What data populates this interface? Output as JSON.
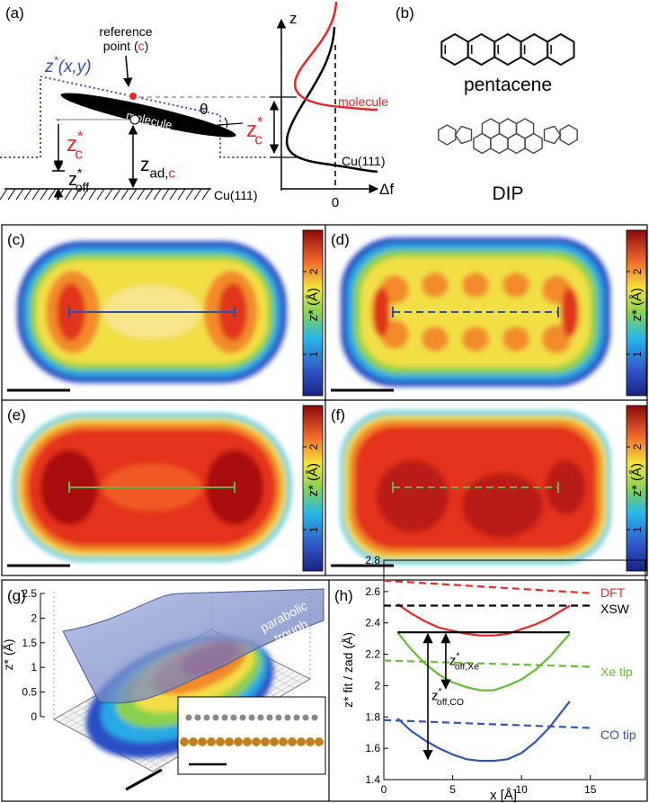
{
  "panel_a": {
    "label": "(a)",
    "ref_line1": "reference",
    "ref_line2": "point (",
    "ref_c": "c",
    "ref_close": ")",
    "surface": {
      "base": "z",
      "sup": "*",
      "rest": "(x,y)"
    },
    "molecule": "molecule",
    "theta": "θ",
    "zc": {
      "base": "z",
      "sup": "*",
      "sub": "c"
    },
    "zoff": {
      "base": "z",
      "sup": "*",
      "sub": "off"
    },
    "zad": {
      "base": "z",
      "sub": "ad,",
      "sub_c": "c"
    },
    "substrate": "Cu(111)",
    "z_axis": "z",
    "df_axis": "Δf",
    "zero": "0"
  },
  "panel_b": {
    "label": "(b)",
    "mol1": "pentacene",
    "mol2": "DIP"
  },
  "maps": {
    "labels": [
      "(c)",
      "(d)",
      "(e)",
      "(f)"
    ],
    "colorbar": {
      "label": "z* (Å)",
      "lim": [
        0.5,
        2.5
      ],
      "ticks": [
        1,
        2
      ]
    }
  },
  "panel_g": {
    "label": "(g)",
    "surface_label": [
      "parabolic",
      "trough"
    ],
    "z_label": "z* (Å)",
    "zlim": [
      0,
      2.5
    ],
    "zticks": [
      0,
      0.5,
      1,
      1.5,
      2,
      2.5
    ]
  },
  "chart_data": {
    "type": "line",
    "panel_label": "(h)",
    "xlabel": "x [Å]",
    "ylabel": "z* fit / zad (Å)",
    "xlim": [
      0,
      19
    ],
    "ylim": [
      1.4,
      2.8
    ],
    "xticks": [
      0,
      5,
      10,
      15
    ],
    "yticks": [
      1.4,
      1.6,
      1.8,
      2,
      2.2,
      2.4,
      2.6,
      2.8
    ],
    "grid": false,
    "series": [
      {
        "name": "DFT",
        "color": "#e8262b",
        "fit": {
          "x": [
            1,
            2,
            3,
            4,
            5,
            6,
            7,
            8,
            9,
            10,
            11,
            12,
            13.5
          ],
          "values": [
            2.52,
            2.46,
            2.41,
            2.37,
            2.35,
            2.33,
            2.32,
            2.32,
            2.33,
            2.36,
            2.39,
            2.43,
            2.51
          ]
        },
        "reference": {
          "x": [
            0,
            15
          ],
          "values": [
            2.67,
            2.59
          ]
        }
      },
      {
        "name": "XSW",
        "color": "#000000",
        "reference": {
          "x": [
            0,
            15
          ],
          "values": [
            2.51,
            2.51
          ]
        }
      },
      {
        "name": "Xe tip",
        "color": "#66bb33",
        "fit": {
          "x": [
            1,
            2,
            3,
            4,
            5,
            6,
            7,
            8,
            9,
            10,
            11,
            12,
            13.5
          ],
          "values": [
            2.34,
            2.23,
            2.14,
            2.07,
            2.02,
            1.99,
            1.97,
            1.97,
            2.0,
            2.04,
            2.1,
            2.18,
            2.33
          ]
        },
        "reference": {
          "x": [
            0,
            15
          ],
          "values": [
            2.16,
            2.12
          ]
        }
      },
      {
        "name": "CO tip",
        "color": "#3355aa",
        "fit": {
          "x": [
            1,
            2,
            3,
            4,
            5,
            6,
            7,
            8,
            9,
            10,
            11,
            12,
            13.5
          ],
          "values": [
            1.79,
            1.71,
            1.65,
            1.6,
            1.56,
            1.53,
            1.52,
            1.52,
            1.53,
            1.57,
            1.64,
            1.73,
            1.9
          ]
        },
        "reference": {
          "x": [
            0,
            15
          ],
          "values": [
            1.78,
            1.73
          ]
        }
      }
    ],
    "level": {
      "x": [
        1,
        13.5
      ],
      "values": [
        2.34,
        2.34
      ]
    },
    "annotations": [
      {
        "base": "z",
        "sup": "*",
        "sub": "off,Xe",
        "x": 4.5,
        "from": 2.34,
        "to": 1.97
      },
      {
        "base": "z",
        "sup": "*",
        "sub": "off,CO",
        "x": 3.2,
        "from": 2.34,
        "to": 1.52
      }
    ]
  }
}
